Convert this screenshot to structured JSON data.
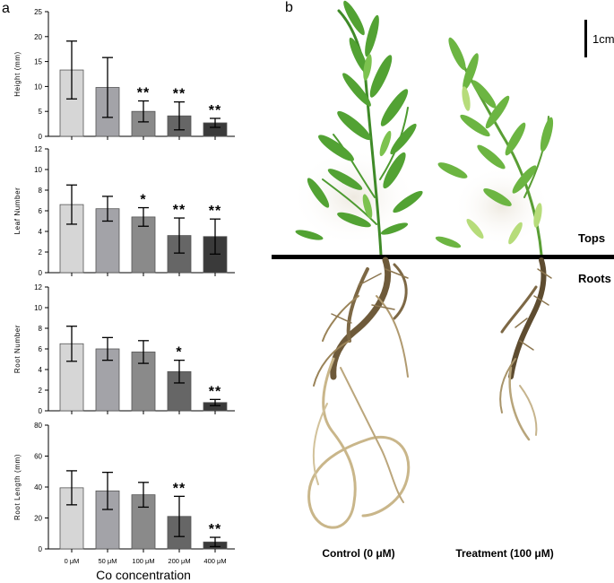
{
  "figure": {
    "panel_a_label": "a",
    "panel_b_label": "b",
    "shared_xlabel": "Co concentration",
    "scale_bar_label": "1cm",
    "tops_label": "Tops",
    "roots_label": "Roots",
    "control_label": "Control (0 μM)",
    "treatment_label": "Treatment (100 μM)"
  },
  "colors": {
    "bars": [
      "#d6d6d6",
      "#a3a3a8",
      "#8a8a8a",
      "#666666",
      "#3a3a3a"
    ],
    "bar_edge": "#555555",
    "axis": "#000000",
    "photo_background": "#ffffff",
    "plant_green": "#4d9a30",
    "root_brown": "#a08a62"
  },
  "chart_data": [
    {
      "type": "bar",
      "categories": [
        "0 μM",
        "50 μM",
        "100 μM",
        "200 μM",
        "400 μM"
      ],
      "values": [
        13.3,
        9.8,
        5.0,
        4.1,
        2.7
      ],
      "errors": [
        5.8,
        6.0,
        2.1,
        2.8,
        0.9
      ],
      "significance": [
        "",
        "",
        "**",
        "**",
        "**"
      ],
      "ylabel": "Height (mm)",
      "ylim": [
        0,
        25
      ],
      "yticks": [
        "0",
        "5",
        "10",
        "15",
        "20",
        "25"
      ],
      "grid": false
    },
    {
      "type": "bar",
      "categories": [
        "0 μM",
        "50 μM",
        "100 μM",
        "200 μM",
        "400 μM"
      ],
      "values": [
        6.6,
        6.2,
        5.4,
        3.6,
        3.5
      ],
      "errors": [
        1.9,
        1.2,
        0.9,
        1.7,
        1.7
      ],
      "significance": [
        "",
        "",
        "*",
        "**",
        "**"
      ],
      "ylabel": "Leaf Number",
      "ylim": [
        0,
        12
      ],
      "yticks": [
        "0",
        "2",
        "4",
        "6",
        "8",
        "10",
        "12"
      ],
      "grid": false
    },
    {
      "type": "bar",
      "categories": [
        "0 μM",
        "50 μM",
        "100 μM",
        "200 μM",
        "400 μM"
      ],
      "values": [
        6.5,
        6.0,
        5.7,
        3.8,
        0.8
      ],
      "errors": [
        1.7,
        1.1,
        1.1,
        1.1,
        0.3
      ],
      "significance": [
        "",
        "",
        "",
        "*",
        "**"
      ],
      "ylabel": "Root Number",
      "ylim": [
        0,
        12
      ],
      "yticks": [
        "0",
        "2",
        "4",
        "6",
        "8",
        "10",
        "12"
      ],
      "grid": false
    },
    {
      "type": "bar",
      "categories": [
        "0 μM",
        "50 μM",
        "100 μM",
        "200 μM",
        "400 μM"
      ],
      "values": [
        39.5,
        37.5,
        35.0,
        21.0,
        4.5
      ],
      "errors": [
        11.0,
        12.0,
        8.0,
        13.0,
        3.0
      ],
      "significance": [
        "",
        "",
        "",
        "**",
        "**"
      ],
      "ylabel": "Root Length (mm)",
      "ylim": [
        0,
        80
      ],
      "yticks": [
        "0",
        "20",
        "40",
        "60",
        "80"
      ],
      "grid": false
    }
  ]
}
